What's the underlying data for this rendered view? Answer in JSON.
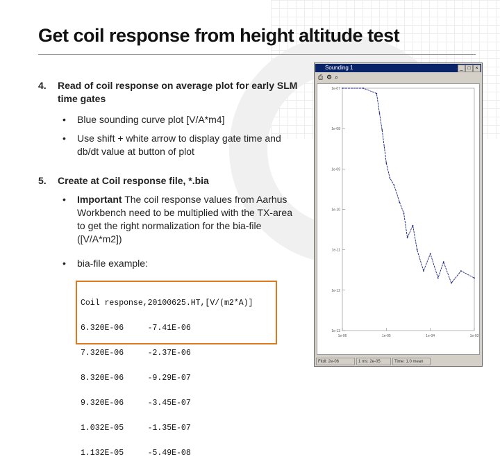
{
  "slide": {
    "title": "Get coil response from height altitude test",
    "items": [
      {
        "number": "4.",
        "lines": [
          "Read of coil response on average plot for early SLM",
          "time gates"
        ],
        "bullets": [
          {
            "lines": [
              "Blue sounding curve plot  [V/A*m4]"
            ]
          },
          {
            "lines": [
              "Use shift + white arrow to display gate time and",
              "db/dt value at button of plot"
            ]
          }
        ]
      },
      {
        "number": "5.",
        "lines": [
          "Create at Coil response file, *.bia"
        ],
        "bullets": [
          {
            "bold": "Important",
            "lines": [
              " The coil response values from Aarhus",
              "Workbench need to be  multiplied with the TX-area",
              "to get the right normalization for the bia-file",
              "([V/A*m2])"
            ]
          },
          {
            "lines": [
              "bia-file example:"
            ]
          }
        ]
      }
    ],
    "code_lines": [
      "Coil response,20100625.HT,[V/(m2*A)]",
      "6.320E-06     -7.41E-06",
      "7.320E-06     -2.37E-06",
      "8.320E-06     -9.29E-07",
      "9.320E-06     -3.45E-07",
      "1.032E-05     -1.35E-07",
      "1.132E-05     -5.49E-08"
    ],
    "bullet_char": "•"
  },
  "window": {
    "title": "Sounding 1",
    "controls": [
      "_",
      "□",
      "×"
    ],
    "status": [
      "Fitdl: 2e-06",
      "1 ms: 2e-05",
      "Time: 1.0 mean"
    ],
    "accent": "#0a246a",
    "curve_color": "#1a237e"
  },
  "chart_data": {
    "type": "line",
    "y_scale": "log",
    "x_scale": "log",
    "y_tick_labels": [
      "1e-07",
      "1e-08",
      "1e-09",
      "1e-10",
      "1e-11",
      "1e-12",
      "1e-13"
    ],
    "x_tick_labels": [
      "1e-06",
      "1e-05",
      "1e-04",
      "1e-03"
    ],
    "series": [
      {
        "x": [
          1e-06,
          3e-06,
          6e-06,
          7e-06,
          8e-06,
          9e-06,
          1e-05,
          1.2e-05,
          1.5e-05,
          2e-05,
          2.5e-05,
          3e-05,
          4e-05,
          5e-05,
          7e-05,
          0.0001,
          0.00015,
          0.0002,
          0.0003,
          0.0005,
          0.001
        ],
        "y": [
          1e-07,
          1e-07,
          7.4e-08,
          2.4e-08,
          9.3e-09,
          3.5e-09,
          1.4e-09,
          6e-10,
          4e-10,
          1.5e-10,
          8e-11,
          2e-11,
          4e-11,
          1e-11,
          3e-12,
          8e-12,
          2e-12,
          5e-12,
          1.5e-12,
          3e-12,
          2e-12
        ]
      }
    ]
  }
}
